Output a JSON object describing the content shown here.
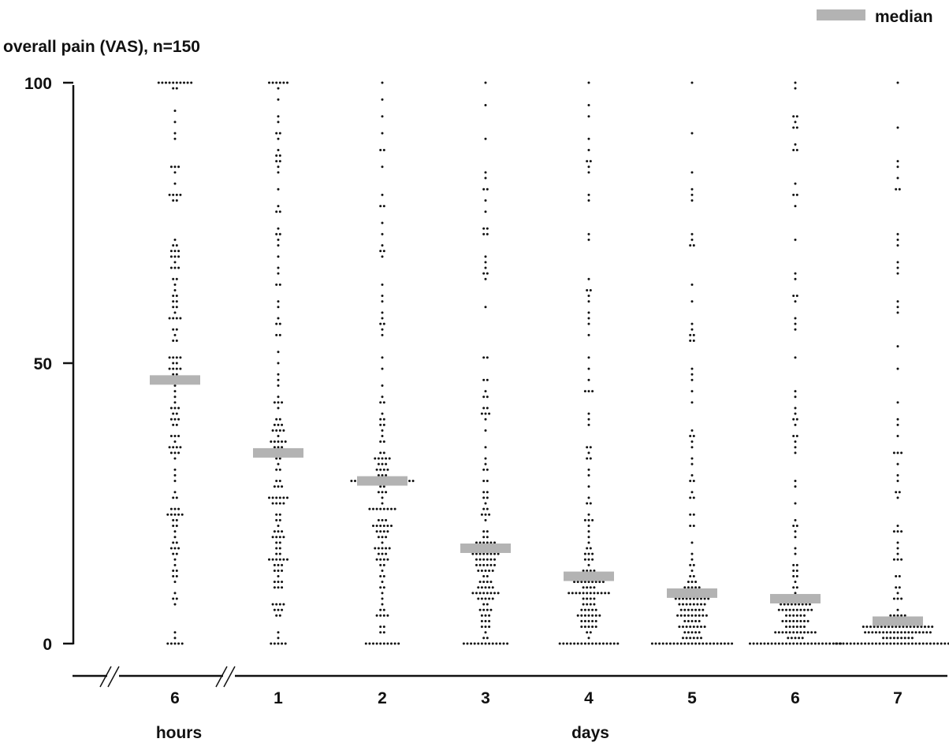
{
  "chart_data": {
    "type": "scatter",
    "ylabel": "overall pain (VAS), n=150",
    "ylim": [
      0,
      100
    ],
    "yticks": [
      0,
      50,
      100
    ],
    "legend": {
      "label": "median",
      "placement": "top-right",
      "color": "#b3b3b3"
    },
    "x_groups": [
      {
        "label": "hours",
        "categories": [
          "6"
        ]
      },
      {
        "label": "days",
        "categories": [
          "1",
          "2",
          "3",
          "4",
          "5",
          "6",
          "7"
        ]
      }
    ],
    "axis_break": "between groups",
    "marker": "dot",
    "series": [
      {
        "category": "6",
        "group": "hours",
        "median": 47,
        "max": 100,
        "min": 0,
        "n": 150
      },
      {
        "category": "1",
        "group": "days",
        "median": 34,
        "max": 100,
        "min": 0,
        "n": 150
      },
      {
        "category": "2",
        "group": "days",
        "median": 29,
        "max": 100,
        "min": 0,
        "n": 150
      },
      {
        "category": "3",
        "group": "days",
        "median": 17,
        "max": 100,
        "min": 0,
        "n": 150
      },
      {
        "category": "4",
        "group": "days",
        "median": 12,
        "max": 100,
        "min": 0,
        "n": 150
      },
      {
        "category": "5",
        "group": "days",
        "median": 9,
        "max": 100,
        "min": 0,
        "n": 150
      },
      {
        "category": "6",
        "group": "days",
        "median": 8,
        "max": 100,
        "min": 0,
        "n": 150
      },
      {
        "category": "7",
        "group": "days",
        "median": 4,
        "max": 100,
        "min": 0,
        "n": 150
      }
    ]
  }
}
